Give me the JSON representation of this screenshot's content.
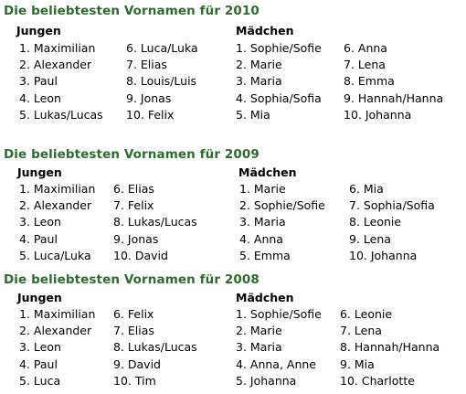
{
  "sections": [
    {
      "title": "Die beliebtesten Vornamen für 2010",
      "boys_header": "Jungen",
      "girls_header": "Mädchen",
      "boys_col1": [
        "1. Maximilian",
        "2. Alexander",
        "3. Paul",
        "4. Leon",
        "5. Lukas/Lucas"
      ],
      "boys_col2": [
        "6. Luca/Luka",
        "7. Elias",
        "8. Louis/Luis",
        "9. Jonas",
        "10. Felix"
      ],
      "girls_col1": [
        "1. Sophie/Sofie",
        "2. Marie",
        "3. Maria",
        "4. Sophia/Sofia",
        "5. Mia"
      ],
      "girls_col2": [
        "6. Anna",
        "7. Lena",
        "8. Emma",
        "9. Hannah/Hanna",
        "10. Johanna"
      ]
    },
    {
      "title": "Die beliebtesten Vornamen für 2009",
      "boys_header": "Jungen",
      "girls_header": "Mädchen",
      "boys_col1": [
        "1. Maximilian",
        "2. Alexander",
        "3. Leon",
        "4. Paul",
        "5. Luca/Luka"
      ],
      "boys_col2": [
        "6. Elias",
        "7. Felix",
        "8. Lukas/Lucas",
        "9. Jonas",
        "10. David"
      ],
      "girls_col1": [
        "1. Marie",
        "2. Sophie/Sofie",
        "3. Maria",
        "4. Anna",
        "5. Emma"
      ],
      "girls_col2": [
        "6. Mia",
        "7. Sophia/Sofia",
        "8. Leonie",
        "9. Lena",
        "10. Johanna"
      ]
    },
    {
      "title": "Die beliebtesten Vornamen für 2008",
      "boys_header": "Jungen",
      "girls_header": "Mädchen",
      "boys_col1": [
        "1. Maximilian",
        "2. Alexander",
        "3. Leon",
        "4. Paul",
        "5. Luca"
      ],
      "boys_col2": [
        "6. Felix",
        "7. Elias",
        "8. Lukas/Lucas",
        "9. David",
        "10. Tim"
      ],
      "girls_col1": [
        "1. Sophie/Sofie",
        "2. Marie",
        "3. Maria",
        "4. Anna, Anne",
        "5. Johanna"
      ],
      "girls_col2": [
        "6. Leonie",
        "7. Lena",
        "8. Hannah/Hanna",
        "9. Mia",
        "10. Charlotte"
      ]
    }
  ],
  "colors": {
    "title": "#2e6b2f",
    "text": "#000000",
    "background": "#ffffff"
  }
}
